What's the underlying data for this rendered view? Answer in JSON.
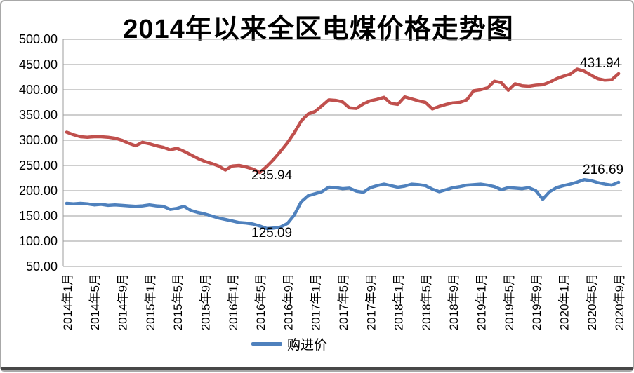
{
  "chart_data": {
    "type": "line",
    "title": "2014年以来全区电煤价格走势图",
    "title_parts": {
      "prefix": "2014",
      "rest": "年以来全区电煤价格走势图"
    },
    "ylim": [
      50,
      500
    ],
    "ytick_labels": [
      "500.00",
      "450.00",
      "400.00",
      "350.00",
      "300.00",
      "250.00",
      "200.00",
      "150.00",
      "100.00",
      "50.00"
    ],
    "xtick_labels": [
      "2014年1月",
      "2014年5月",
      "2014年9月",
      "2015年1月",
      "2015年5月",
      "2015年9月",
      "2016年1月",
      "2016年5月",
      "2016年9月",
      "2017年1月",
      "2017年5月",
      "2017年9月",
      "2018年1月",
      "2018年5月",
      "2018年9月",
      "2019年1月",
      "2019年5月",
      "2019年9月",
      "2020年1月",
      "2020年5月",
      "2020年9月"
    ],
    "months_per_tick": 4,
    "grid": "horizontal",
    "legend": {
      "entries": [
        "购进价"
      ],
      "position": "bottom-center",
      "marker_color": "#4F81BD"
    },
    "series": [
      {
        "id": "red-series",
        "name": "",
        "color": "#C0504D",
        "values": [
          316,
          311,
          307,
          306,
          307,
          307,
          306,
          304,
          300,
          294,
          289,
          296,
          293,
          289,
          286,
          281,
          284,
          278,
          271,
          264,
          258,
          254,
          249,
          241,
          249,
          250,
          247,
          243,
          235.94,
          248,
          262,
          278,
          295,
          315,
          338,
          352,
          357,
          368,
          380,
          379,
          376,
          364,
          363,
          372,
          378,
          381,
          385,
          373,
          371,
          386,
          382,
          378,
          375,
          362,
          367,
          371,
          374,
          375,
          380,
          398,
          400,
          404,
          417,
          414,
          399,
          412,
          408,
          407,
          409,
          410,
          415,
          422,
          427,
          431,
          441,
          437,
          429,
          422,
          419,
          420,
          431.94
        ]
      },
      {
        "id": "blue-series",
        "name": "购进价",
        "color": "#4F81BD",
        "values": [
          175,
          174,
          175,
          174,
          172,
          173,
          171,
          172,
          171,
          170,
          169,
          170,
          172,
          170,
          169,
          163,
          165,
          169,
          161,
          157,
          154,
          150,
          146,
          143,
          140,
          137,
          136,
          134,
          130,
          125.09,
          126,
          128,
          135,
          152,
          178,
          190,
          194,
          198,
          207,
          206,
          204,
          205,
          199,
          197,
          206,
          210,
          213,
          210,
          207,
          209,
          213,
          212,
          210,
          203,
          198,
          202,
          206,
          208,
          211,
          212,
          213,
          211,
          208,
          202,
          206,
          205,
          204,
          206,
          200,
          183,
          198,
          206,
          210,
          213,
          217,
          222,
          220,
          216,
          213,
          211,
          216.69
        ]
      }
    ],
    "annotations": {
      "red_min": "235.94",
      "blue_min": "125.09",
      "red_last": "431.94",
      "blue_last": "216.69"
    }
  },
  "colors": {
    "red_series": "#C0504D",
    "blue_series": "#4F81BD",
    "gridline": "#9c9c9c",
    "frame_border": "#a8a8a8",
    "text": "#000000"
  }
}
